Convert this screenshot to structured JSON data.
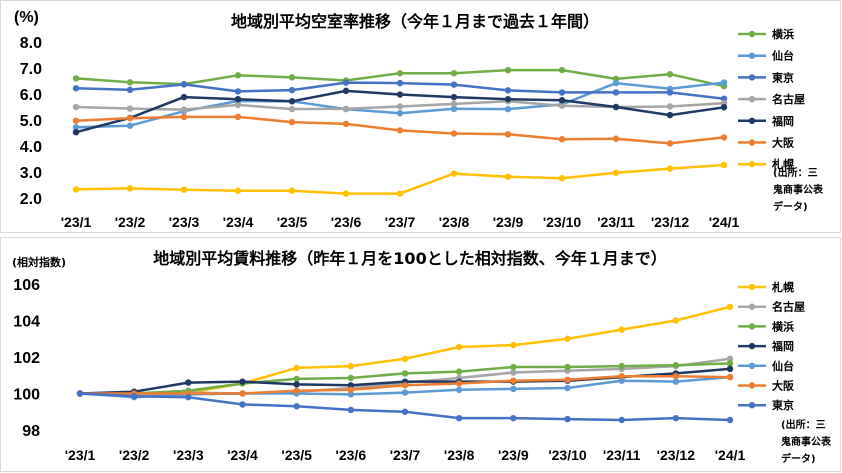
{
  "chart_data": [
    {
      "type": "line",
      "title": "地域別平均空室率推移（今年１月まで過去１年間）",
      "unit_label": "(%)",
      "categories": [
        "'23/1",
        "'23/2",
        "'23/3",
        "'23/4",
        "'23/5",
        "'23/6",
        "'23/7",
        "'23/8",
        "'23/9",
        "'23/10",
        "'23/11",
        "'23/12",
        "'24/1"
      ],
      "ylim": [
        2.0,
        8.0
      ],
      "yticks": [
        "2.0",
        "3.0",
        "4.0",
        "5.0",
        "6.0",
        "7.0",
        "8.0"
      ],
      "source_lines": [
        "(出所：三",
        "鬼商事公表",
        "データ)"
      ],
      "series": [
        {
          "name": "横浜",
          "color": "#70AD47",
          "values": [
            6.6,
            6.45,
            6.38,
            6.72,
            6.64,
            6.52,
            6.8,
            6.8,
            6.92,
            6.92,
            6.58,
            6.76,
            6.3
          ]
        },
        {
          "name": "仙台",
          "color": "#5B9BD5",
          "values": [
            4.72,
            4.78,
            5.34,
            5.73,
            5.72,
            5.42,
            5.26,
            5.43,
            5.42,
            5.6,
            6.42,
            6.2,
            6.44
          ]
        },
        {
          "name": "東京",
          "color": "#4472C4",
          "values": [
            6.22,
            6.16,
            6.37,
            6.1,
            6.15,
            6.44,
            6.42,
            6.36,
            6.14,
            6.06,
            6.06,
            6.06,
            5.82
          ]
        },
        {
          "name": "名古屋",
          "color": "#A5A5A5",
          "values": [
            5.5,
            5.44,
            5.4,
            5.58,
            5.42,
            5.43,
            5.52,
            5.62,
            5.72,
            5.55,
            5.5,
            5.52,
            5.65
          ]
        },
        {
          "name": "福岡",
          "color": "#203864",
          "values": [
            4.53,
            5.08,
            5.88,
            5.8,
            5.72,
            6.12,
            5.98,
            5.88,
            5.8,
            5.76,
            5.5,
            5.19,
            5.49
          ]
        },
        {
          "name": "大阪",
          "color": "#ED7D31",
          "values": [
            4.97,
            5.07,
            5.12,
            5.12,
            4.92,
            4.85,
            4.6,
            4.48,
            4.45,
            4.26,
            4.28,
            4.1,
            4.33
          ]
        },
        {
          "name": "札幌",
          "color": "#FFC000",
          "values": [
            2.33,
            2.37,
            2.32,
            2.28,
            2.28,
            2.17,
            2.17,
            2.94,
            2.82,
            2.76,
            2.97,
            3.13,
            3.27
          ]
        }
      ]
    },
    {
      "type": "line",
      "title": "地域別平均賃料推移（昨年１月を100とした相対指数、今年１月まで）",
      "unit_label": "(相対指数)",
      "categories": [
        "'23/1",
        "'23/2",
        "'23/3",
        "'23/4",
        "'23/5",
        "'23/6",
        "'23/7",
        "'23/8",
        "'23/9",
        "'23/10",
        "'23/11",
        "'23/12",
        "'24/1"
      ],
      "ylim": [
        98,
        106
      ],
      "yticks": [
        "98",
        "100",
        "102",
        "104",
        "106"
      ],
      "source_lines": [
        "(出所：三",
        "鬼商事公表",
        "データ)"
      ],
      "series": [
        {
          "name": "札幌",
          "color": "#FFC000",
          "values": [
            100.0,
            99.95,
            100.05,
            100.55,
            101.4,
            101.5,
            101.9,
            102.55,
            102.65,
            103.0,
            103.5,
            104.0,
            104.75
          ]
        },
        {
          "name": "名古屋",
          "color": "#A5A5A5",
          "values": [
            100.0,
            99.95,
            100.05,
            100.0,
            100.1,
            100.3,
            100.6,
            100.85,
            101.15,
            101.25,
            101.35,
            101.5,
            101.9
          ]
        },
        {
          "name": "横浜",
          "color": "#70AD47",
          "values": [
            100.0,
            100.0,
            100.15,
            100.55,
            100.8,
            100.85,
            101.1,
            101.2,
            101.45,
            101.45,
            101.5,
            101.55,
            101.65
          ]
        },
        {
          "name": "福岡",
          "color": "#203864",
          "values": [
            100.0,
            100.1,
            100.6,
            100.65,
            100.5,
            100.45,
            100.65,
            100.65,
            100.65,
            100.7,
            100.9,
            101.1,
            101.35
          ]
        },
        {
          "name": "仙台",
          "color": "#5B9BD5",
          "values": [
            100.0,
            99.8,
            99.95,
            100.0,
            100.0,
            99.95,
            100.05,
            100.2,
            100.25,
            100.3,
            100.7,
            100.65,
            100.9
          ]
        },
        {
          "name": "大阪",
          "color": "#ED7D31",
          "values": [
            100.0,
            100.0,
            100.0,
            100.0,
            100.15,
            100.2,
            100.45,
            100.55,
            100.7,
            100.75,
            100.95,
            100.95,
            100.9
          ]
        },
        {
          "name": "東京",
          "color": "#4472C4",
          "values": [
            100.0,
            99.85,
            99.8,
            99.4,
            99.3,
            99.1,
            99.0,
            98.65,
            98.65,
            98.6,
            98.55,
            98.65,
            98.55
          ]
        }
      ]
    }
  ]
}
